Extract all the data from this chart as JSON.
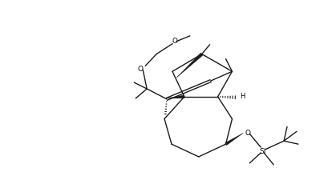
{
  "bg_color": "#ffffff",
  "line_color": "#1a1a1a",
  "figsize": [
    4.19,
    2.26
  ],
  "dpi": 100,
  "xlim": [
    0,
    419
  ],
  "ylim": [
    0,
    226
  ]
}
